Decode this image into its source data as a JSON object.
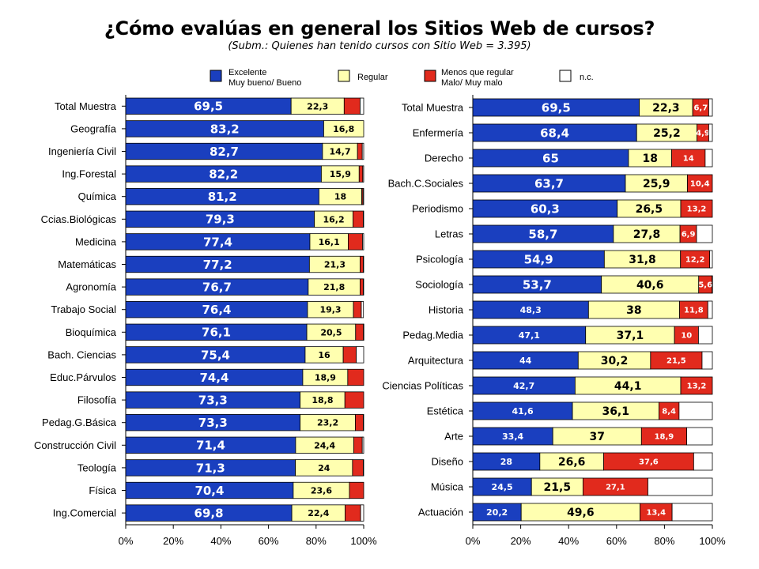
{
  "title": "¿Cómo evalúas en general los Sitios Web de cursos?",
  "subtitle": "(Subm.: Quienes han tenido cursos con Sitio Web = 3.395)",
  "colors": {
    "excelente": "#1a3fbf",
    "regular": "#ffffb0",
    "menos": "#e12a1d",
    "nc": "#ffffff"
  },
  "legend": [
    {
      "key": "excelente",
      "lines": [
        "Excelente",
        "Muy bueno/ Bueno"
      ]
    },
    {
      "key": "regular",
      "lines": [
        "Regular"
      ]
    },
    {
      "key": "menos",
      "lines": [
        "Menos que regular",
        "Malo/ Muy malo"
      ]
    },
    {
      "key": "nc",
      "lines": [
        "n.c."
      ]
    }
  ],
  "chart_data": [
    {
      "type": "bar",
      "orientation": "horizontal",
      "stacked": "percent",
      "xlim": [
        0,
        100
      ],
      "ticks": [
        "0%",
        "20%",
        "40%",
        "60%",
        "80%",
        "100%"
      ],
      "categories": [
        "Total Muestra",
        "Geografía",
        "Ingeniería Civil",
        "Ing.Forestal",
        "Química",
        "Ccias.Biológicas",
        "Medicina",
        "Matemáticas",
        "Agronomía",
        "Trabajo Social",
        "Bioquímica",
        "Bach. Ciencias",
        "Educ.Párvulos",
        "Filosofía",
        "Pedag.G.Básica",
        "Construcción Civil",
        "Teología",
        "Física",
        "Ing.Comercial"
      ],
      "series": [
        {
          "name": "Excelente / Muy bueno/ Bueno",
          "key": "excelente",
          "values": [
            69.5,
            83.2,
            82.7,
            82.2,
            81.2,
            79.3,
            77.4,
            77.2,
            76.7,
            76.4,
            76.1,
            75.4,
            74.4,
            73.3,
            73.3,
            71.4,
            71.3,
            70.4,
            69.8
          ],
          "labels": [
            "69,5",
            "83,2",
            "82,7",
            "82,2",
            "81,2",
            "79,3",
            "77,4",
            "77,2",
            "76,7",
            "76,4",
            "76,1",
            "75,4",
            "74,4",
            "73,3",
            "73,3",
            "71,4",
            "71,3",
            "70,4",
            "69,8"
          ]
        },
        {
          "name": "Regular",
          "key": "regular",
          "values": [
            22.3,
            16.8,
            14.7,
            15.9,
            18,
            16.2,
            16.1,
            21.3,
            21.8,
            19.3,
            20.5,
            16,
            18.9,
            18.8,
            23.2,
            24.4,
            24,
            23.6,
            22.4
          ],
          "labels": [
            "22,3",
            "16,8",
            "14,7",
            "15,9",
            "18",
            "16,2",
            "16,1",
            "21,3",
            "21,8",
            "19,3",
            "20,5",
            "16",
            "18,9",
            "18,8",
            "23,2",
            "24,4",
            "24",
            "23,6",
            "22,4"
          ]
        },
        {
          "name": "Menos que regular / Malo/ Muy malo",
          "key": "menos",
          "values": [
            6.7,
            0,
            2,
            1.5,
            0.5,
            4.3,
            6,
            1.3,
            1.3,
            3.3,
            3.3,
            5.5,
            6.7,
            7.9,
            3.3,
            3.6,
            4.5,
            6,
            6.5
          ],
          "labels": [
            "",
            "",
            "",
            "",
            "",
            "",
            "",
            "",
            "",
            "",
            "",
            "",
            "",
            "",
            "",
            "",
            "",
            "",
            ""
          ]
        },
        {
          "name": "n.c.",
          "key": "nc",
          "values": [
            1.5,
            0,
            0.6,
            0.4,
            0.3,
            0.2,
            0.5,
            0.2,
            0.2,
            0.9,
            0.1,
            3.1,
            0,
            0,
            0.2,
            0.6,
            0.2,
            0,
            1.3
          ],
          "labels": [
            "",
            "",
            "",
            "",
            "",
            "",
            "",
            "",
            "",
            "",
            "",
            "",
            "",
            "",
            "",
            "",
            "",
            "",
            ""
          ]
        }
      ]
    },
    {
      "type": "bar",
      "orientation": "horizontal",
      "stacked": "percent",
      "xlim": [
        0,
        100
      ],
      "ticks": [
        "0%",
        "20%",
        "40%",
        "60%",
        "80%",
        "100%"
      ],
      "categories": [
        "Total Muestra",
        "Enfermería",
        "Derecho",
        "Bach.C.Sociales",
        "Periodismo",
        "Letras",
        "Psicología",
        "Sociología",
        "Historia",
        "Pedag.Media",
        "Arquitectura",
        "Ciencias Políticas",
        "Estética",
        "Arte",
        "Diseño",
        "Música",
        "Actuación"
      ],
      "series": [
        {
          "name": "Excelente / Muy bueno/ Bueno",
          "key": "excelente",
          "values": [
            69.5,
            68.4,
            65,
            63.7,
            60.3,
            58.7,
            54.9,
            53.7,
            48.3,
            47.1,
            44,
            42.7,
            41.6,
            33.4,
            28,
            24.5,
            20.2
          ],
          "labels": [
            "69,5",
            "68,4",
            "65",
            "63,7",
            "60,3",
            "58,7",
            "54,9",
            "53,7",
            "48,3",
            "47,1",
            "44",
            "42,7",
            "41,6",
            "33,4",
            "28",
            "24,5",
            "20,2"
          ]
        },
        {
          "name": "Regular",
          "key": "regular",
          "values": [
            22.3,
            25.2,
            18,
            25.9,
            26.5,
            27.8,
            31.8,
            40.6,
            38,
            37.1,
            30.2,
            44.1,
            36.1,
            37,
            26.6,
            21.5,
            49.6
          ],
          "labels": [
            "22,3",
            "25,2",
            "18",
            "25,9",
            "26,5",
            "27,8",
            "31,8",
            "40,6",
            "38",
            "37,1",
            "30,2",
            "44,1",
            "36,1",
            "37",
            "26,6",
            "21,5",
            "49,6"
          ]
        },
        {
          "name": "Menos que regular / Malo/ Muy malo",
          "key": "menos",
          "values": [
            6.7,
            4.9,
            14,
            10.4,
            13.2,
            6.9,
            12.2,
            5.6,
            11.8,
            10,
            21.5,
            13.2,
            8.4,
            18.9,
            37.6,
            27.1,
            13.4
          ],
          "labels": [
            "6,7",
            "4,9",
            "14",
            "10,4",
            "13,2",
            "6,9",
            "12,2",
            "5,6",
            "11,8",
            "10",
            "21,5",
            "13,2",
            "8,4",
            "18,9",
            "37,6",
            "27,1",
            "13,4"
          ]
        },
        {
          "name": "n.c.",
          "key": "nc",
          "values": [
            1.5,
            1.5,
            3,
            0,
            0,
            6.6,
            1.1,
            0.1,
            1.9,
            5.8,
            4.3,
            0,
            13.9,
            10.7,
            7.8,
            26.9,
            16.8
          ],
          "labels": [
            "",
            "",
            "",
            "",
            "",
            "",
            "",
            "",
            "",
            "",
            "",
            "",
            "",
            "",
            "",
            "",
            ""
          ]
        }
      ]
    }
  ]
}
